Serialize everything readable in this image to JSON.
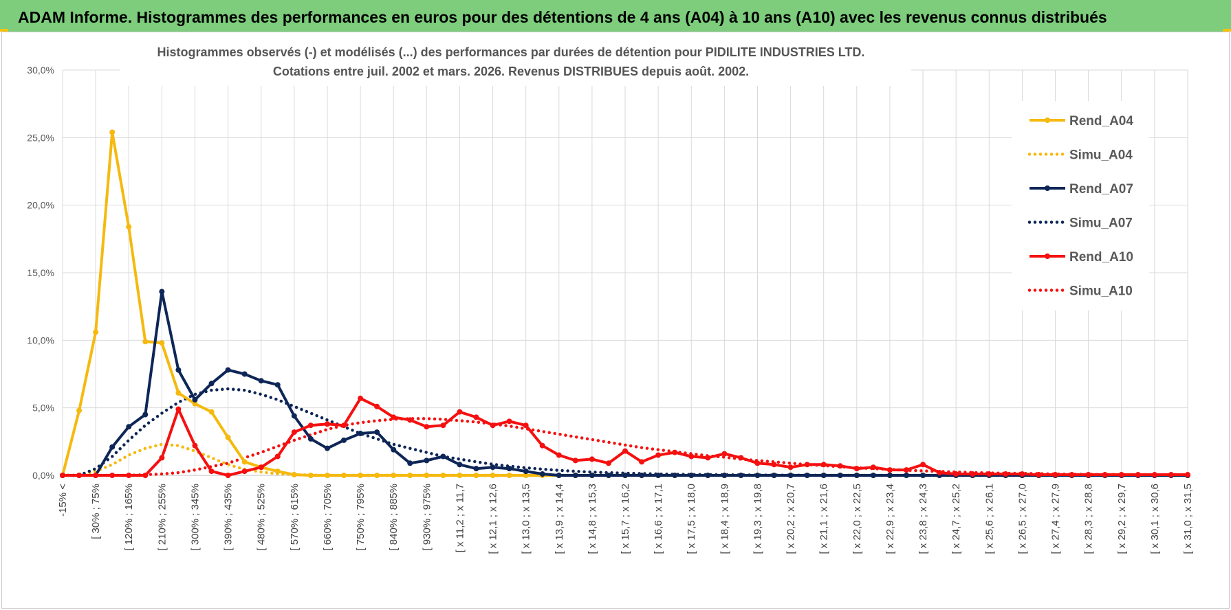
{
  "banner": {
    "title": "ADAM Informe. Histogrammes des performances en euros pour des détentions de 4 ans (A04) à 10 ans (A10) avec les revenus connus distribués"
  },
  "colors": {
    "banner_bg": "#7dcd7d",
    "A04": "#f5b90f",
    "A07": "#0e2657",
    "A10": "#f51010"
  },
  "chart_data": {
    "type": "line",
    "title": "Histogrammes observés (-) et modélisés (...) des performances par durées de détention pour PIDILITE INDUSTRIES LTD.",
    "subtitle": "Cotations entre juil. 2002 et mars. 2026.  Revenus DISTRIBUES depuis août. 2002.",
    "xlabel": "",
    "ylabel": "",
    "ylim": [
      0,
      30
    ],
    "yticks": [
      "0,0%",
      "5,0%",
      "10,0%",
      "15,0%",
      "20,0%",
      "25,0%",
      "30,0%"
    ],
    "grid": true,
    "legend_position": "right",
    "n_points": 69,
    "tick_labels": [
      "-15% <",
      "[ 30% ; 75%",
      "[ 120% ; 165%",
      "[ 210% ; 255%",
      "[ 300% ; 345%",
      "[ 390% ; 435%",
      "[ 480% ; 525%",
      "[ 570% ; 615%",
      "[ 660% ; 705%",
      "[ 750% ; 795%",
      "[ 840% ; 885%",
      "[ 930% ; 975%",
      "[ x 11,2 ; x 11,7",
      "[ x 12,1 ; x 12,6",
      "[ x 13,0 ; x 13,5",
      "[ x 13,9 ; x 14,4",
      "[ x 14,8 ; x 15,3",
      "[ x 15,7 ; x 16,2",
      "[ x 16,6 ; x 17,1",
      "[ x 17,5 ; x 18,0",
      "[ x 18,4 ; x 18,9",
      "[ x 19,3 ; x 19,8",
      "[ x 20,2 ; x 20,7",
      "[ x 21,1 ; x 21,6",
      "[ x 22,0 ; x 22,5",
      "[ x 22,9 ; x 23,4",
      "[ x 23,8 ; x 24,3",
      "[ x 24,7 ; x 25,2",
      "[ x 25,6 ; x 26,1",
      "[ x 26,5 ; x 27,0",
      "[ x 27,4 ; x 27,9",
      "[ x 28,3 ; x 28,8",
      "[ x 29,2 ; x 29,7",
      "[ x 30,1 ; x 30,6",
      "[ x 31,0 ; x 31,5"
    ],
    "series": [
      {
        "name": "Rend_A04",
        "style": "solid",
        "color": "#f5b90f",
        "values": [
          0,
          4.8,
          10.6,
          25.4,
          18.4,
          9.9,
          9.8,
          6.1,
          5.3,
          4.7,
          2.8,
          1.0,
          0.6,
          0.3,
          0.05,
          0,
          0,
          0,
          0,
          0,
          0,
          0,
          0,
          0,
          0,
          0,
          0,
          0,
          0,
          0,
          0,
          0,
          0,
          0,
          0,
          0,
          0,
          0,
          0,
          0,
          0,
          0,
          0,
          0,
          0,
          0,
          0,
          0,
          0,
          0,
          0,
          0,
          0,
          0,
          0,
          0,
          0,
          0,
          0,
          0,
          0,
          0,
          0,
          0,
          0,
          0,
          0,
          0,
          0
        ]
      },
      {
        "name": "Simu_A04",
        "style": "dotted",
        "color": "#f5b90f",
        "values": [
          0,
          0,
          0.3,
          0.8,
          1.5,
          2.0,
          2.3,
          2.2,
          1.8,
          1.3,
          0.8,
          0.45,
          0.25,
          0.12,
          0.05,
          0.02,
          0,
          0,
          0,
          0,
          0,
          0,
          0,
          0,
          0,
          0,
          0,
          0,
          0,
          0,
          0,
          0,
          0,
          0,
          0,
          0,
          0,
          0,
          0,
          0,
          0,
          0,
          0,
          0,
          0,
          0,
          0,
          0,
          0,
          0,
          0,
          0,
          0,
          0,
          0,
          0,
          0,
          0,
          0,
          0,
          0,
          0,
          0,
          0,
          0,
          0,
          0,
          0,
          0
        ]
      },
      {
        "name": "Rend_A07",
        "style": "solid",
        "color": "#0e2657",
        "values": [
          0,
          0,
          0,
          2.1,
          3.6,
          4.5,
          13.6,
          7.8,
          5.6,
          6.8,
          7.8,
          7.5,
          7.0,
          6.7,
          4.4,
          2.7,
          2.0,
          2.6,
          3.1,
          3.2,
          1.9,
          0.9,
          1.1,
          1.4,
          0.8,
          0.5,
          0.6,
          0.5,
          0.3,
          0.1,
          0,
          0,
          0,
          0,
          0,
          0,
          0,
          0,
          0,
          0,
          0,
          0,
          0,
          0,
          0,
          0,
          0,
          0,
          0,
          0,
          0,
          0,
          0,
          0,
          0,
          0,
          0,
          0,
          0,
          0,
          0,
          0,
          0,
          0,
          0,
          0,
          0,
          0,
          0
        ]
      },
      {
        "name": "Simu_A07",
        "style": "dotted",
        "color": "#0e2657",
        "values": [
          0,
          0,
          0.5,
          1.4,
          2.6,
          3.7,
          4.6,
          5.4,
          6.0,
          6.3,
          6.4,
          6.3,
          6.0,
          5.6,
          5.1,
          4.6,
          4.1,
          3.6,
          3.1,
          2.7,
          2.3,
          2.0,
          1.7,
          1.4,
          1.2,
          1.0,
          0.82,
          0.68,
          0.56,
          0.46,
          0.37,
          0.3,
          0.24,
          0.2,
          0.16,
          0.13,
          0.1,
          0.08,
          0.06,
          0.05,
          0.04,
          0.03,
          0.02,
          0.02,
          0.01,
          0.01,
          0,
          0,
          0,
          0,
          0,
          0,
          0,
          0,
          0,
          0,
          0,
          0,
          0,
          0,
          0,
          0,
          0,
          0,
          0,
          0,
          0,
          0,
          0
        ]
      },
      {
        "name": "Rend_A10",
        "style": "solid",
        "color": "#f51010",
        "values": [
          0,
          0,
          0,
          0,
          0,
          0,
          1.3,
          4.9,
          2.2,
          0.3,
          0,
          0.3,
          0.6,
          1.4,
          3.2,
          3.7,
          3.8,
          3.7,
          5.7,
          5.1,
          4.3,
          4.1,
          3.6,
          3.7,
          4.7,
          4.3,
          3.7,
          4.0,
          3.7,
          2.2,
          1.5,
          1.1,
          1.2,
          0.9,
          1.8,
          1.0,
          1.5,
          1.7,
          1.4,
          1.3,
          1.6,
          1.3,
          0.9,
          0.8,
          0.6,
          0.8,
          0.8,
          0.7,
          0.5,
          0.6,
          0.4,
          0.4,
          0.8,
          0.2,
          0.1,
          0.1,
          0.1,
          0.1,
          0.1,
          0.05,
          0.05,
          0.05,
          0.05,
          0.05,
          0.05,
          0.05,
          0.05,
          0.05,
          0.05
        ]
      },
      {
        "name": "Simu_A10",
        "style": "dotted",
        "color": "#f51010",
        "values": [
          0,
          0,
          0,
          0,
          0,
          0.05,
          0.1,
          0.2,
          0.4,
          0.65,
          0.9,
          1.3,
          1.7,
          2.15,
          2.6,
          3.0,
          3.4,
          3.7,
          3.9,
          4.05,
          4.15,
          4.2,
          4.2,
          4.15,
          4.05,
          3.95,
          3.8,
          3.65,
          3.45,
          3.25,
          3.05,
          2.85,
          2.65,
          2.45,
          2.25,
          2.05,
          1.9,
          1.75,
          1.6,
          1.45,
          1.35,
          1.2,
          1.1,
          1.0,
          0.9,
          0.8,
          0.72,
          0.64,
          0.56,
          0.5,
          0.44,
          0.38,
          0.33,
          0.29,
          0.25,
          0.21,
          0.18,
          0.16,
          0.14,
          0.12,
          0.1,
          0.08,
          0.07,
          0.06,
          0.05,
          0.04,
          0.03,
          0.02,
          0.02
        ]
      }
    ]
  }
}
